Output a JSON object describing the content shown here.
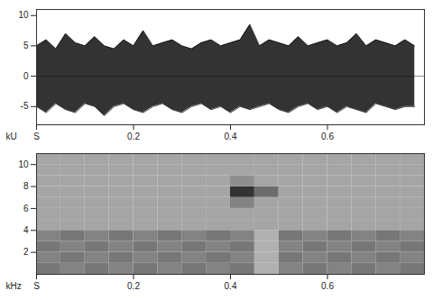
{
  "chart_data": [
    {
      "type": "area",
      "y_label": "kU",
      "x": [
        0,
        0.02,
        0.04,
        0.06,
        0.08,
        0.1,
        0.12,
        0.14,
        0.16,
        0.18,
        0.2,
        0.22,
        0.24,
        0.26,
        0.28,
        0.3,
        0.32,
        0.34,
        0.36,
        0.38,
        0.4,
        0.42,
        0.44,
        0.46,
        0.48,
        0.5,
        0.52,
        0.54,
        0.56,
        0.58,
        0.6,
        0.62,
        0.64,
        0.66,
        0.68,
        0.7,
        0.72,
        0.74,
        0.76,
        0.78
      ],
      "values_max": [
        5,
        6,
        4.5,
        7,
        5.5,
        5,
        6.5,
        5,
        4.5,
        6,
        5,
        7.5,
        5,
        5.5,
        6,
        5,
        4.5,
        5.5,
        6,
        5,
        5.5,
        6,
        8.5,
        5,
        6,
        5.5,
        5,
        6.5,
        5,
        5.5,
        6,
        5,
        5.5,
        7,
        5,
        6,
        5.5,
        5,
        6,
        5
      ],
      "values_min": [
        -5,
        -6,
        -4.5,
        -5.5,
        -6,
        -4.5,
        -5,
        -6.5,
        -5,
        -4.5,
        -5.5,
        -6,
        -5,
        -4.5,
        -5.5,
        -6,
        -5,
        -4.5,
        -5.5,
        -5,
        -6,
        -5,
        -5.5,
        -5,
        -4.5,
        -5.5,
        -6,
        -5,
        -4.5,
        -5.5,
        -5,
        -6,
        -5,
        -5.5,
        -6,
        -4.5,
        -5,
        -5.5,
        -5,
        -5
      ],
      "color": "#333333",
      "xlim": [
        0,
        0.8
      ],
      "xticks": [
        {
          "value": 0,
          "label": "S"
        },
        0.2,
        0.4,
        0.6
      ],
      "ylim": [
        -8,
        11
      ],
      "yticks": [
        -5,
        0,
        5,
        10
      ]
    },
    {
      "type": "heatmap",
      "y_label": "kHz",
      "x_edges": [
        0,
        0.05,
        0.1,
        0.15,
        0.2,
        0.25,
        0.3,
        0.35,
        0.4,
        0.45,
        0.5,
        0.55,
        0.6,
        0.65,
        0.7,
        0.75,
        0.8
      ],
      "y_edges": [
        0,
        1,
        2,
        3,
        4,
        5,
        6,
        7,
        8,
        9,
        10,
        11
      ],
      "cells": [
        [
          0.55,
          0.5,
          0.55,
          0.5,
          0.55,
          0.5,
          0.55,
          0.5,
          0.55,
          0.3,
          0.5,
          0.55,
          0.5,
          0.55,
          0.5,
          0.55
        ],
        [
          0.5,
          0.55,
          0.5,
          0.55,
          0.5,
          0.55,
          0.5,
          0.55,
          0.5,
          0.3,
          0.55,
          0.5,
          0.55,
          0.5,
          0.55,
          0.5
        ],
        [
          0.55,
          0.5,
          0.55,
          0.5,
          0.55,
          0.5,
          0.55,
          0.5,
          0.55,
          0.3,
          0.5,
          0.55,
          0.5,
          0.55,
          0.5,
          0.55
        ],
        [
          0.5,
          0.55,
          0.5,
          0.55,
          0.5,
          0.55,
          0.5,
          0.55,
          0.5,
          0.3,
          0.55,
          0.5,
          0.55,
          0.5,
          0.55,
          0.5
        ],
        [
          0.35,
          0.35,
          0.35,
          0.35,
          0.35,
          0.35,
          0.35,
          0.35,
          0.35,
          0.35,
          0.35,
          0.35,
          0.35,
          0.35,
          0.35,
          0.35
        ],
        [
          0.35,
          0.35,
          0.35,
          0.35,
          0.35,
          0.35,
          0.35,
          0.35,
          0.35,
          0.35,
          0.35,
          0.35,
          0.35,
          0.35,
          0.35,
          0.35
        ],
        [
          0.35,
          0.35,
          0.35,
          0.35,
          0.35,
          0.35,
          0.35,
          0.35,
          0.5,
          0.35,
          0.35,
          0.35,
          0.35,
          0.35,
          0.35,
          0.35
        ],
        [
          0.35,
          0.35,
          0.35,
          0.35,
          0.35,
          0.35,
          0.35,
          0.35,
          0.85,
          0.6,
          0.35,
          0.35,
          0.35,
          0.35,
          0.35,
          0.35
        ],
        [
          0.35,
          0.35,
          0.35,
          0.35,
          0.35,
          0.35,
          0.35,
          0.35,
          0.45,
          0.35,
          0.35,
          0.35,
          0.35,
          0.35,
          0.35,
          0.35
        ],
        [
          0.35,
          0.35,
          0.35,
          0.35,
          0.35,
          0.35,
          0.35,
          0.35,
          0.35,
          0.35,
          0.35,
          0.35,
          0.35,
          0.35,
          0.35,
          0.35
        ],
        [
          0.35,
          0.35,
          0.35,
          0.35,
          0.35,
          0.35,
          0.35,
          0.35,
          0.35,
          0.35,
          0.35,
          0.35,
          0.35,
          0.35,
          0.35,
          0.35
        ]
      ],
      "value_range": [
        0,
        1
      ],
      "xlim": [
        0,
        0.8
      ],
      "xticks": [
        {
          "value": 0,
          "label": "S"
        },
        0.2,
        0.4,
        0.6
      ],
      "ylim": [
        0,
        11
      ],
      "yticks": [
        2,
        4,
        6,
        8,
        10
      ]
    }
  ]
}
